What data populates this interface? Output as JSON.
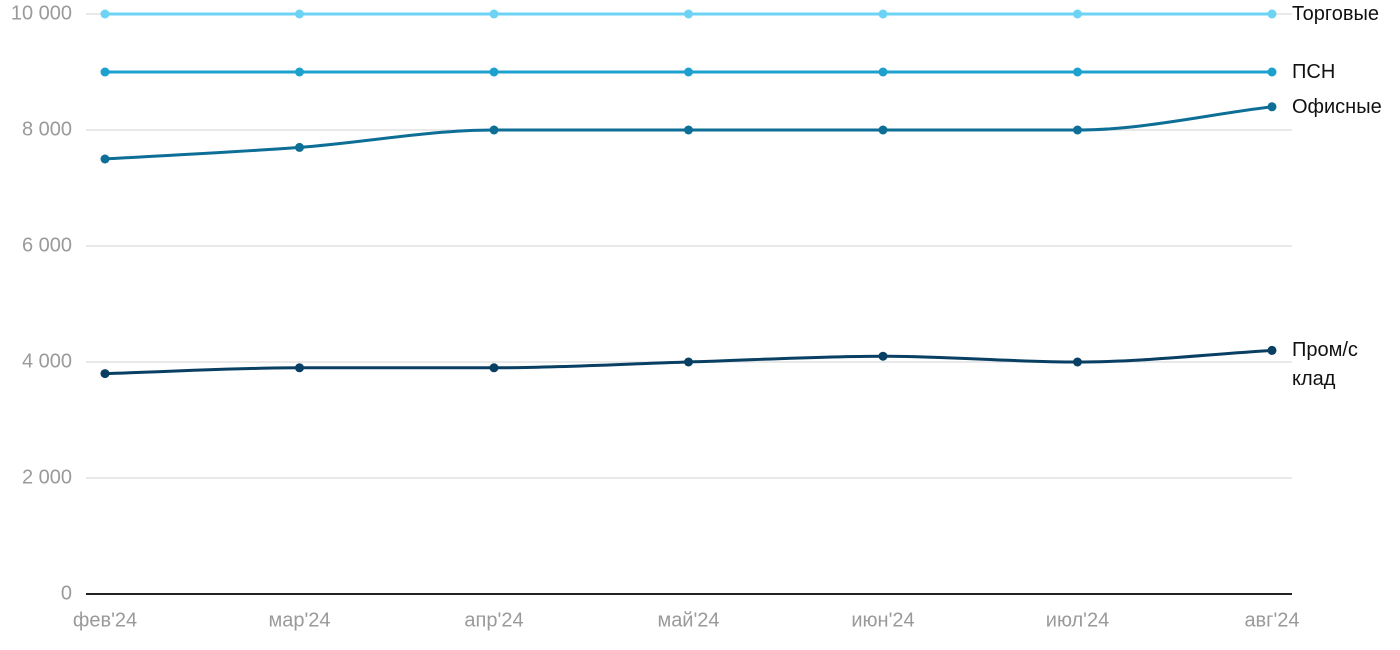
{
  "chart_data": {
    "type": "line",
    "categories": [
      "фев'24",
      "мар'24",
      "апр'24",
      "май'24",
      "июн'24",
      "июл'24",
      "авг'24"
    ],
    "series": [
      {
        "name": "Торговые",
        "color": "#6dd3f5",
        "values": [
          10000,
          10000,
          10000,
          10000,
          10000,
          10000,
          10000
        ]
      },
      {
        "name": "ПСН",
        "color": "#1ea0cf",
        "values": [
          9000,
          9000,
          9000,
          9000,
          9000,
          9000,
          9000
        ]
      },
      {
        "name": "Офисные",
        "color": "#0d6e96",
        "values": [
          7500,
          7700,
          8000,
          8000,
          8000,
          8000,
          8400
        ]
      },
      {
        "name": "Пром/склад",
        "color": "#083f63",
        "values": [
          3800,
          3900,
          3900,
          4000,
          4100,
          4000,
          4200
        ]
      }
    ],
    "ylim": [
      0,
      10000
    ],
    "yticks": [
      0,
      {
        "value": 2000,
        "label": "2 000"
      },
      {
        "value": 4000,
        "label": "4 000"
      },
      {
        "value": 6000,
        "label": "6 000"
      },
      {
        "value": 8000,
        "label": "8 000"
      },
      {
        "value": 10000,
        "label": "10 000"
      }
    ],
    "grid": true
  }
}
